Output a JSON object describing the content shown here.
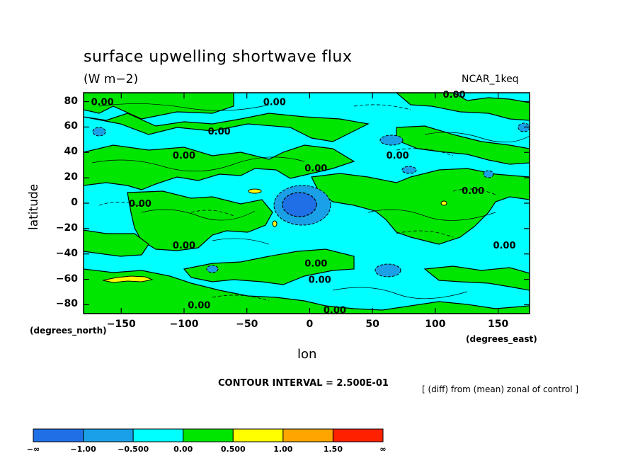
{
  "title": "surface upwelling shortwave flux",
  "units": "(W m−2)",
  "dataset": "NCAR_1keq",
  "x_axis_title": "lon",
  "y_axis_title": "latitude",
  "y_units": "(degrees_north)",
  "x_units": "(degrees_east)",
  "contour_interval": "CONTOUR INTERVAL = 2.500E-01",
  "note": "[ (diff) from (mean) zonal of control ]",
  "contour_label": "0.00",
  "colors": {
    "dark_blue": "#1f6fe6",
    "mid_blue": "#1aa0e6",
    "cyan": "#00ffff",
    "green": "#00e600",
    "yellow": "#ffff00",
    "orange": "#ffa500",
    "red": "#ff2000"
  },
  "chart_data": {
    "type": "contour map",
    "xlim": [
      -180,
      175
    ],
    "ylim": [
      -87,
      87
    ],
    "x_ticks": [
      -150,
      -100,
      -50,
      0,
      50,
      100,
      150
    ],
    "x_tick_labels": [
      "−150",
      "−100",
      "−50",
      "0",
      "50",
      "100",
      "150"
    ],
    "y_ticks": [
      80,
      60,
      40,
      20,
      0,
      -20,
      -40,
      -60,
      -80
    ],
    "y_tick_labels": [
      "80",
      "60",
      "40",
      "20",
      "0",
      "−20",
      "−40",
      "−60",
      "−80"
    ],
    "colorbar": {
      "labels": [
        "−∞",
        "−1.00",
        "−0.500",
        "0.00",
        "0.500",
        "1.00",
        "1.50",
        "∞"
      ],
      "colors": [
        "#1f6fe6",
        "#1aa0e6",
        "#00ffff",
        "#00e600",
        "#ffff00",
        "#ffa500",
        "#ff2000"
      ]
    },
    "contour_labels": [
      {
        "lon": -165,
        "lat": 80,
        "text": "0.00"
      },
      {
        "lon": -28,
        "lat": 80,
        "text": "0.00"
      },
      {
        "lon": 115,
        "lat": 86,
        "text": "0.00"
      },
      {
        "lon": -72,
        "lat": 57,
        "text": "0.00"
      },
      {
        "lon": -100,
        "lat": 38,
        "text": "0.00"
      },
      {
        "lon": 70,
        "lat": 38,
        "text": "0.00"
      },
      {
        "lon": 5,
        "lat": 28,
        "text": "0.00"
      },
      {
        "lon": 130,
        "lat": 10,
        "text": "0.00"
      },
      {
        "lon": -135,
        "lat": 0,
        "text": "0.00"
      },
      {
        "lon": -100,
        "lat": -33,
        "text": "0.00"
      },
      {
        "lon": 155,
        "lat": -33,
        "text": "0.00"
      },
      {
        "lon": 5,
        "lat": -47,
        "text": "0.00"
      },
      {
        "lon": 8,
        "lat": -60,
        "text": "0.00"
      },
      {
        "lon": -88,
        "lat": -80,
        "text": "0.00"
      },
      {
        "lon": 20,
        "lat": -84,
        "text": "0.00"
      }
    ]
  }
}
